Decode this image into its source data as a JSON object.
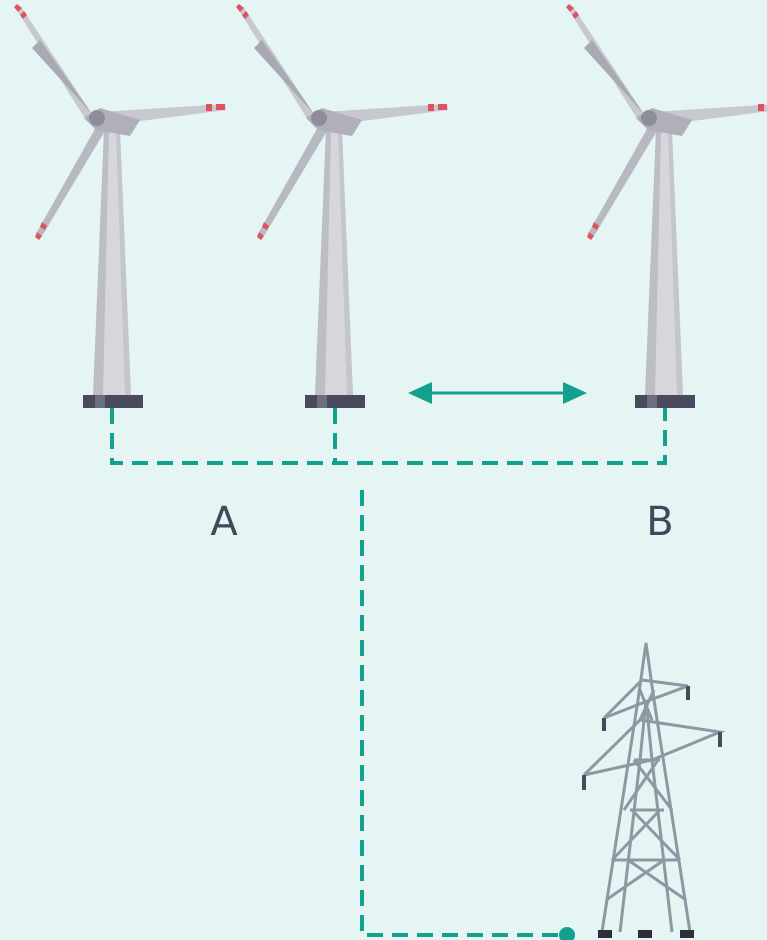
{
  "labels": {
    "A": "A",
    "B": "B"
  }
}
